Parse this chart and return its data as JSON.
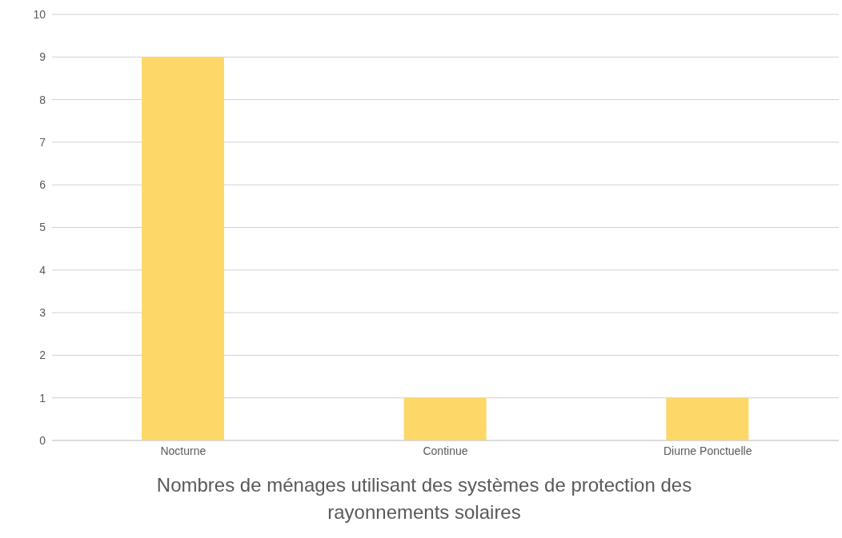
{
  "chart_data": {
    "type": "bar",
    "title": "Nombres de ménages utilisant des systèmes de protection des rayonnements solaires",
    "categories": [
      "Nocturne",
      "Continue",
      "Diurne Ponctuelle"
    ],
    "values": [
      9,
      1,
      1
    ],
    "color": "#fdd868",
    "ylim": [
      0,
      10
    ],
    "yticks": [
      0,
      1,
      2,
      3,
      4,
      5,
      6,
      7,
      8,
      9,
      10
    ],
    "grid": "y",
    "legend": false
  }
}
